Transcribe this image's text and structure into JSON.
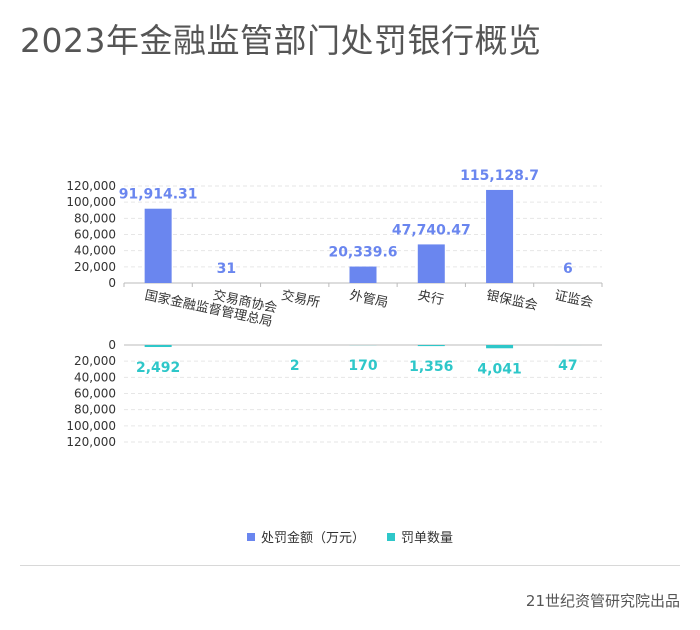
{
  "title": "2023年金融监管部门处罚银行概览",
  "footer": "21世纪资管研究院出品",
  "chart_data": {
    "type": "bar",
    "categories": [
      "国家金融监督管理总局",
      "交易商协会",
      "交易所",
      "外管局",
      "央行",
      "银保监会",
      "证监会"
    ],
    "series": [
      {
        "name": "处罚金额（万元）",
        "values": [
          91914.31,
          31,
          0,
          20339.6,
          47740.47,
          115128.7,
          6
        ],
        "labels": [
          "91,914.31",
          "31",
          "",
          "20,339.6",
          "47,740.47",
          "115,128.7",
          "6"
        ],
        "color": "#6a86ef"
      },
      {
        "name": "罚单数量",
        "values": [
          2492,
          0,
          2,
          170,
          1356,
          4041,
          47
        ],
        "labels": [
          "2,492",
          "",
          "2",
          "170",
          "1,356",
          "4,041",
          "47"
        ],
        "color": "#2ec7c9"
      }
    ],
    "top_axis": {
      "ylim": [
        0,
        120000
      ],
      "ticks": [
        "120,000",
        "100,000",
        "80,000",
        "60,000",
        "40,000",
        "20,000",
        "0"
      ]
    },
    "bottom_axis": {
      "ylim": [
        0,
        120000
      ],
      "inverted": true,
      "ticks": [
        "0",
        "20,000",
        "40,000",
        "60,000",
        "80,000",
        "100,000",
        "120,000"
      ]
    },
    "grid": true,
    "legend_position": "bottom-center"
  }
}
